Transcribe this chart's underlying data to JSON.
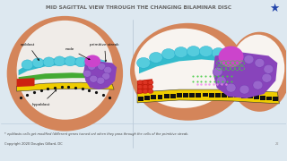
{
  "bg_color": "#dde8f0",
  "title_left": "MID SAGITTAL VIEW ",
  "title_right": "THROUGH THE CHANGING BILAMINAR DISC",
  "title_color": "#666666",
  "title_fontsize": 4.2,
  "subtitle": "* epiblasts cells get modified (different genes turned on) when they pass through the cells of the primitive streak.",
  "copyright": "Copyright 2020 Douglas Gillard, DC",
  "slide_num": "22",
  "star_color": "#2244aa",
  "skin_color": "#d4855a",
  "inner_color": "#f0ece8",
  "epiblast_color": "#33bbcc",
  "hypoblast_color": "#eecc00",
  "hypoblast_dot": "#111111",
  "red_color": "#cc2211",
  "purple_color": "#8844bb",
  "node_color": "#cc44cc",
  "green_color": "#44aa33",
  "white_scatter": "#f0e8f0",
  "label_fs": 3.0
}
